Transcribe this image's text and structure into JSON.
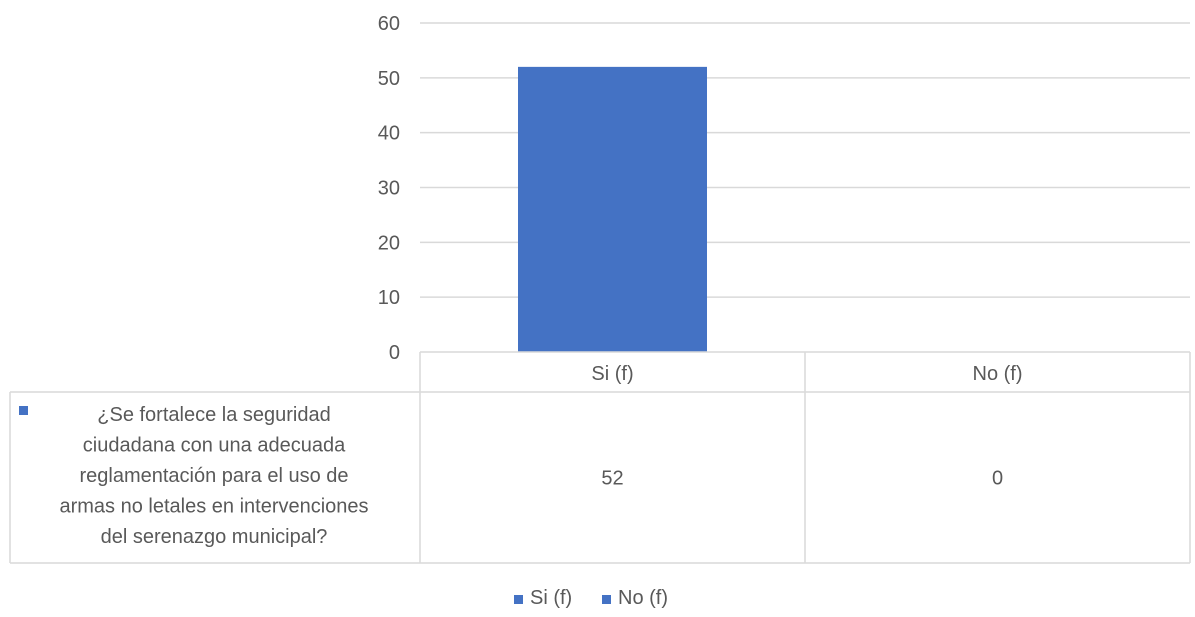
{
  "chart_data": {
    "type": "bar",
    "categories": [
      "Si (f)",
      "No (f)"
    ],
    "series": [
      {
        "name": "¿Se fortalece la seguridad ciudadana con una adecuada reglamentación para el uso de armas no letales en intervenciones del serenazgo municipal?",
        "name_lines": [
          "¿Se fortalece la seguridad",
          "ciudadana con una adecuada",
          "reglamentación para el uso de",
          "armas no letales en intervenciones",
          "del serenazgo municipal?"
        ],
        "values": [
          52,
          0
        ],
        "color": "#4472C4"
      }
    ],
    "ylim": [
      0,
      60
    ],
    "yticks": [
      0,
      10,
      20,
      30,
      40,
      50,
      60
    ],
    "grid": true,
    "legend": {
      "placement": "bottom",
      "entries": [
        {
          "label": "Si (f)",
          "color": "#4472C4"
        },
        {
          "label": "No (f)",
          "color": "#4472C4"
        }
      ]
    },
    "data_table": true
  }
}
